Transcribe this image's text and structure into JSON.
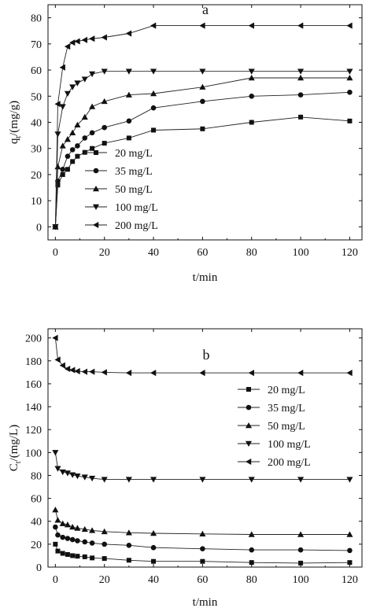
{
  "chart_data": [
    {
      "type": "line",
      "panel_label": "a",
      "xlabel": "t/min",
      "ylabel_main": "q",
      "ylabel_sub": "t",
      "ylabel_tail": "/(mg/g)",
      "xlim": [
        -3,
        125
      ],
      "ylim": [
        -5,
        85
      ],
      "xticks": [
        0,
        20,
        40,
        60,
        80,
        100,
        120
      ],
      "yticks": [
        0,
        10,
        20,
        30,
        40,
        50,
        60,
        70,
        80
      ],
      "legend_position": "lower-left",
      "series": [
        {
          "name": "20 mg/L",
          "marker": "square",
          "x": [
            0,
            1,
            3,
            5,
            7,
            9,
            12,
            15,
            20,
            30,
            40,
            60,
            80,
            100,
            120
          ],
          "y": [
            0,
            16,
            20,
            22,
            25,
            27,
            28.5,
            30,
            32,
            34,
            37,
            37.5,
            40,
            42,
            40.5
          ]
        },
        {
          "name": "35 mg/L",
          "marker": "circle",
          "x": [
            0,
            1,
            3,
            5,
            7,
            9,
            12,
            15,
            20,
            30,
            40,
            60,
            80,
            100,
            120
          ],
          "y": [
            0,
            17.5,
            22,
            27,
            29.5,
            31,
            34,
            36,
            38,
            40.5,
            45.5,
            48,
            50,
            50.5,
            51.5
          ]
        },
        {
          "name": "50 mg/L",
          "marker": "triangle-up",
          "x": [
            0,
            1,
            3,
            5,
            7,
            9,
            12,
            15,
            20,
            30,
            40,
            60,
            80,
            100,
            120
          ],
          "y": [
            0,
            23,
            31,
            33.5,
            36,
            39,
            42,
            46,
            48,
            50.5,
            51,
            53.5,
            57,
            57,
            57
          ]
        },
        {
          "name": "100 mg/L",
          "marker": "triangle-down",
          "x": [
            0,
            1,
            3,
            5,
            7,
            9,
            12,
            15,
            20,
            30,
            40,
            60,
            80,
            100,
            120
          ],
          "y": [
            0,
            35.5,
            46,
            51,
            53.5,
            55,
            56.5,
            58.5,
            59.5,
            59.5,
            59.5,
            59.5,
            59.5,
            59.5,
            59.5
          ]
        },
        {
          "name": "200 mg/L",
          "marker": "triangle-left",
          "x": [
            0,
            1,
            3,
            5,
            7,
            9,
            12,
            15,
            20,
            30,
            40,
            60,
            80,
            100,
            120
          ],
          "y": [
            0,
            47,
            61,
            69,
            70.5,
            71,
            71.5,
            72,
            72.5,
            74,
            77,
            77,
            77,
            77,
            77
          ]
        }
      ]
    },
    {
      "type": "line",
      "panel_label": "b",
      "xlabel": "t/min",
      "ylabel_main": "C",
      "ylabel_sub": "t",
      "ylabel_tail": "/(mg/L)",
      "xlim": [
        -3,
        125
      ],
      "ylim": [
        0,
        208
      ],
      "xticks": [
        0,
        20,
        40,
        60,
        80,
        100,
        120
      ],
      "yticks": [
        0,
        20,
        40,
        60,
        80,
        100,
        120,
        140,
        160,
        180,
        200
      ],
      "legend_position": "right",
      "series": [
        {
          "name": "20 mg/L",
          "marker": "square",
          "x": [
            0,
            1,
            3,
            5,
            7,
            9,
            12,
            15,
            20,
            30,
            40,
            60,
            80,
            100,
            120
          ],
          "y": [
            20,
            14,
            12,
            11,
            10,
            9.5,
            9,
            8,
            7.5,
            6,
            5,
            5,
            4,
            3.5,
            4
          ]
        },
        {
          "name": "35 mg/L",
          "marker": "circle",
          "x": [
            0,
            1,
            3,
            5,
            7,
            9,
            12,
            15,
            20,
            30,
            40,
            60,
            80,
            100,
            120
          ],
          "y": [
            35,
            28,
            26,
            25,
            24,
            23,
            22,
            21,
            20,
            19,
            17,
            16,
            15,
            15,
            14.5
          ]
        },
        {
          "name": "50 mg/L",
          "marker": "triangle-up",
          "x": [
            0,
            1,
            3,
            5,
            7,
            9,
            12,
            15,
            20,
            30,
            40,
            60,
            80,
            100,
            120
          ],
          "y": [
            50,
            41,
            38,
            37,
            35,
            34,
            33,
            32,
            31,
            30,
            29.5,
            29,
            28.5,
            28.5,
            28.5
          ]
        },
        {
          "name": "100 mg/L",
          "marker": "triangle-down",
          "x": [
            0,
            1,
            3,
            5,
            7,
            9,
            12,
            15,
            20,
            30,
            40,
            60,
            80,
            100,
            120
          ],
          "y": [
            100,
            86,
            83,
            82,
            80.5,
            79.5,
            78.5,
            77.5,
            76.5,
            76.5,
            76.5,
            76.5,
            76.5,
            76.5,
            76.5
          ]
        },
        {
          "name": "200 mg/L",
          "marker": "triangle-left",
          "x": [
            0,
            1,
            3,
            5,
            7,
            9,
            12,
            15,
            20,
            30,
            40,
            60,
            80,
            100,
            120
          ],
          "y": [
            200,
            181,
            176,
            173,
            172,
            171,
            170.5,
            170.5,
            170,
            169.5,
            169.5,
            169.5,
            169.5,
            169.5,
            169.5
          ]
        }
      ]
    }
  ]
}
